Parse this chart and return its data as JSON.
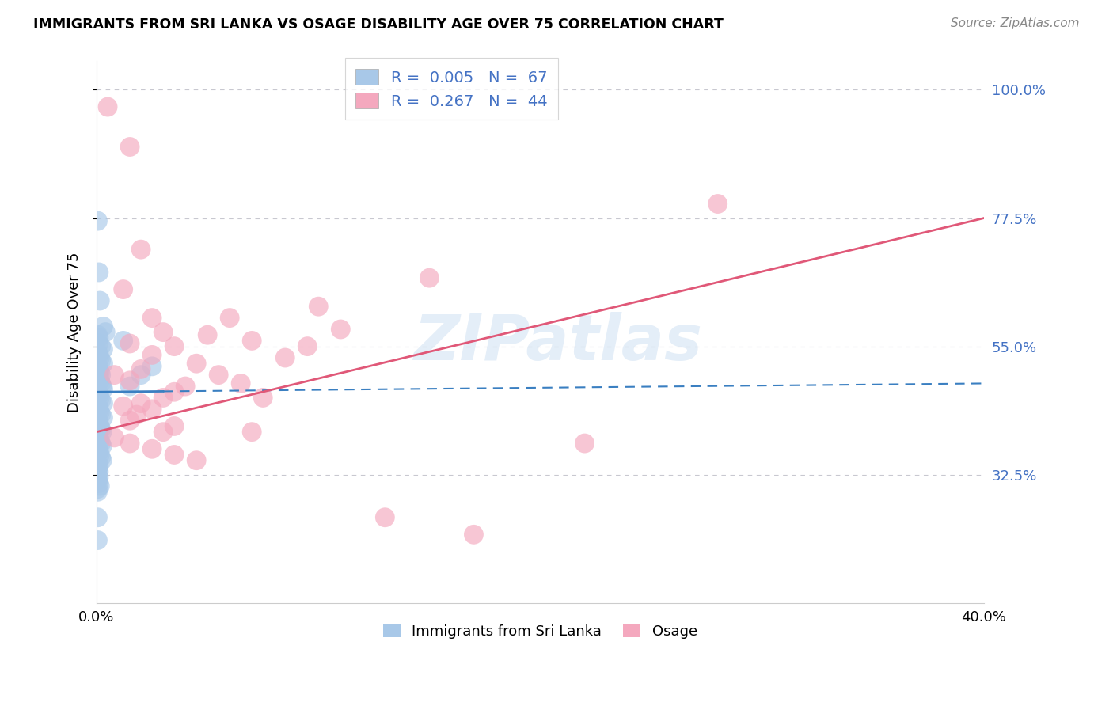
{
  "title": "IMMIGRANTS FROM SRI LANKA VS OSAGE DISABILITY AGE OVER 75 CORRELATION CHART",
  "source": "Source: ZipAtlas.com",
  "xlabel_blue": "Immigrants from Sri Lanka",
  "xlabel_pink": "Osage",
  "ylabel": "Disability Age Over 75",
  "xlim": [
    0.0,
    40.0
  ],
  "ylim": [
    10.0,
    105.0
  ],
  "yticks": [
    32.5,
    55.0,
    77.5,
    100.0
  ],
  "xticks": [
    0.0,
    40.0
  ],
  "blue_R": "0.005",
  "blue_N": "67",
  "pink_R": "0.267",
  "pink_N": "44",
  "blue_color": "#a8c8e8",
  "pink_color": "#f4a8be",
  "blue_line_color": "#3a7fc1",
  "pink_line_color": "#e05878",
  "blue_line_y0": 47.0,
  "blue_line_y1": 48.5,
  "pink_line_y0": 40.0,
  "pink_line_y1": 77.5,
  "blue_scatter": [
    [
      0.05,
      77.0
    ],
    [
      0.1,
      68.0
    ],
    [
      0.15,
      63.0
    ],
    [
      0.3,
      58.5
    ],
    [
      0.4,
      57.5
    ],
    [
      0.05,
      57.0
    ],
    [
      0.1,
      56.5
    ],
    [
      0.1,
      55.5
    ],
    [
      0.2,
      55.0
    ],
    [
      0.3,
      54.5
    ],
    [
      0.05,
      54.0
    ],
    [
      0.1,
      53.5
    ],
    [
      0.15,
      53.0
    ],
    [
      0.2,
      52.5
    ],
    [
      0.3,
      52.0
    ],
    [
      0.05,
      51.5
    ],
    [
      0.1,
      51.0
    ],
    [
      0.15,
      50.5
    ],
    [
      0.2,
      50.0
    ],
    [
      0.05,
      50.0
    ],
    [
      0.1,
      49.5
    ],
    [
      0.15,
      49.0
    ],
    [
      0.2,
      48.5
    ],
    [
      0.25,
      48.0
    ],
    [
      0.3,
      47.5
    ],
    [
      0.05,
      47.0
    ],
    [
      0.1,
      46.5
    ],
    [
      0.15,
      46.0
    ],
    [
      0.2,
      45.5
    ],
    [
      0.3,
      45.0
    ],
    [
      0.05,
      44.5
    ],
    [
      0.1,
      44.0
    ],
    [
      0.15,
      43.5
    ],
    [
      0.2,
      43.0
    ],
    [
      0.3,
      42.5
    ],
    [
      0.05,
      42.0
    ],
    [
      0.1,
      41.5
    ],
    [
      0.15,
      41.0
    ],
    [
      0.2,
      40.5
    ],
    [
      0.25,
      40.0
    ],
    [
      0.05,
      39.5
    ],
    [
      0.1,
      39.0
    ],
    [
      0.15,
      38.5
    ],
    [
      0.2,
      38.0
    ],
    [
      0.25,
      37.5
    ],
    [
      0.05,
      37.0
    ],
    [
      0.1,
      36.5
    ],
    [
      0.15,
      36.0
    ],
    [
      0.2,
      35.5
    ],
    [
      0.25,
      35.0
    ],
    [
      0.05,
      34.5
    ],
    [
      0.1,
      34.0
    ],
    [
      0.05,
      33.5
    ],
    [
      0.1,
      33.0
    ],
    [
      0.05,
      32.5
    ],
    [
      0.1,
      32.0
    ],
    [
      0.05,
      31.5
    ],
    [
      0.1,
      31.0
    ],
    [
      0.15,
      30.5
    ],
    [
      0.05,
      30.0
    ],
    [
      0.05,
      29.5
    ],
    [
      0.05,
      25.0
    ],
    [
      0.05,
      21.0
    ],
    [
      1.5,
      48.0
    ],
    [
      1.2,
      56.0
    ],
    [
      2.0,
      50.0
    ],
    [
      2.5,
      51.5
    ]
  ],
  "pink_scatter": [
    [
      0.5,
      97.0
    ],
    [
      1.5,
      90.0
    ],
    [
      2.0,
      72.0
    ],
    [
      1.2,
      65.0
    ],
    [
      2.5,
      60.0
    ],
    [
      3.0,
      57.5
    ],
    [
      1.5,
      55.5
    ],
    [
      3.5,
      55.0
    ],
    [
      2.5,
      53.5
    ],
    [
      2.0,
      51.0
    ],
    [
      0.8,
      50.0
    ],
    [
      1.5,
      49.0
    ],
    [
      4.0,
      48.0
    ],
    [
      3.5,
      47.0
    ],
    [
      3.0,
      46.0
    ],
    [
      2.0,
      45.0
    ],
    [
      1.2,
      44.5
    ],
    [
      2.5,
      44.0
    ],
    [
      1.8,
      43.0
    ],
    [
      1.5,
      42.0
    ],
    [
      3.5,
      41.0
    ],
    [
      3.0,
      40.0
    ],
    [
      5.0,
      57.0
    ],
    [
      6.0,
      60.0
    ],
    [
      7.0,
      56.0
    ],
    [
      10.0,
      62.0
    ],
    [
      15.0,
      67.0
    ],
    [
      28.0,
      80.0
    ],
    [
      22.0,
      38.0
    ],
    [
      13.0,
      25.0
    ],
    [
      17.0,
      22.0
    ],
    [
      8.5,
      53.0
    ],
    [
      4.5,
      52.0
    ],
    [
      5.5,
      50.0
    ],
    [
      6.5,
      48.5
    ],
    [
      7.5,
      46.0
    ],
    [
      9.5,
      55.0
    ],
    [
      11.0,
      58.0
    ],
    [
      0.8,
      39.0
    ],
    [
      1.5,
      38.0
    ],
    [
      2.5,
      37.0
    ],
    [
      3.5,
      36.0
    ],
    [
      4.5,
      35.0
    ],
    [
      7.0,
      40.0
    ]
  ],
  "watermark": "ZIPatlas",
  "background_color": "#ffffff",
  "grid_color": "#c8c8d0",
  "right_ytick_color": "#4472c4"
}
